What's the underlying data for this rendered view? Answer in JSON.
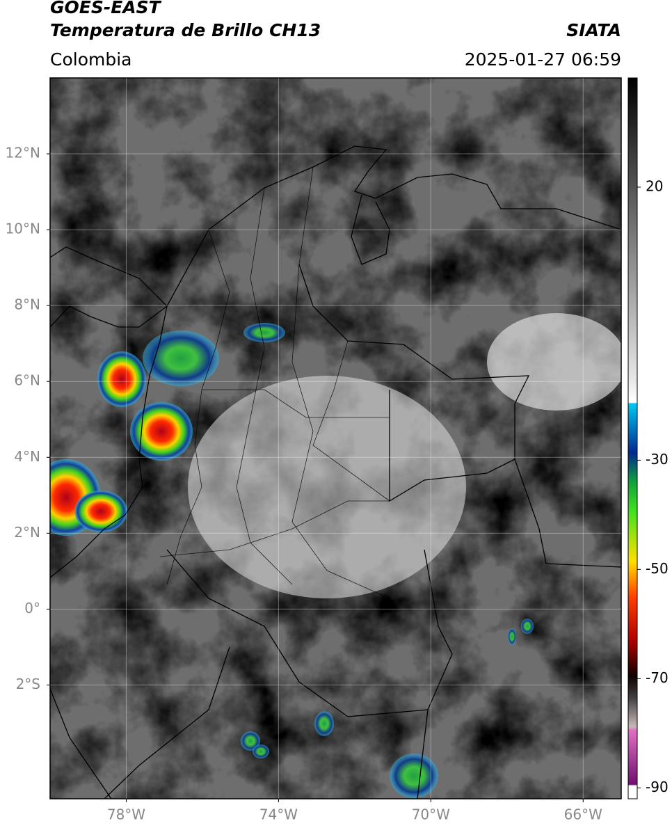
{
  "header": {
    "satellite": "GOES-EAST",
    "product": "Temperatura de Brillo CH13",
    "source": "SIATA",
    "region": "Colombia",
    "datetime": "2025-01-27 06:59"
  },
  "map": {
    "xlim": [
      -80,
      -65
    ],
    "ylim": [
      -5,
      14
    ],
    "grid": true,
    "xticks": [
      {
        "value": -78,
        "label": "78°W"
      },
      {
        "value": -74,
        "label": "74°W"
      },
      {
        "value": -70,
        "label": "70°W"
      },
      {
        "value": -66,
        "label": "66°W"
      }
    ],
    "yticks": [
      {
        "value": 12,
        "label": "12°N"
      },
      {
        "value": 10,
        "label": "10°N"
      },
      {
        "value": 8,
        "label": "8°N"
      },
      {
        "value": 6,
        "label": "6°N"
      },
      {
        "value": 4,
        "label": "4°N"
      },
      {
        "value": 2,
        "label": "2°N"
      },
      {
        "value": 0,
        "label": "0°"
      },
      {
        "value": -2,
        "label": "2°S"
      }
    ]
  },
  "colorbar": {
    "lim": [
      -92,
      40
    ],
    "ticks": [
      20,
      -30,
      -50,
      -70,
      -90
    ]
  }
}
